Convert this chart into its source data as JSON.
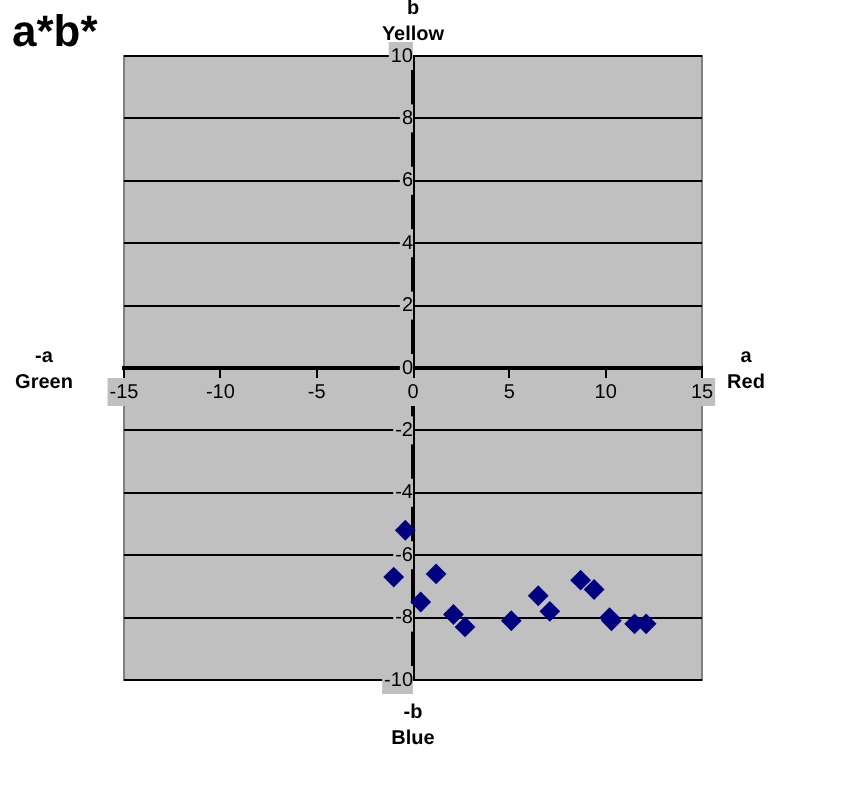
{
  "chart_data": {
    "type": "scatter",
    "title": "a*b*",
    "annotations": [
      "b\nYellow",
      "-b\nBlue",
      "-a\nGreen",
      "a\nRed"
    ],
    "x": [
      -0.4,
      -1.0,
      0.4,
      1.2,
      2.1,
      2.7,
      5.1,
      6.5,
      7.1,
      8.7,
      9.4,
      10.2,
      10.3,
      11.5,
      12.1
    ],
    "series": [
      {
        "color": "#000080",
        "values": [
          -5.2,
          -6.7,
          -7.5,
          -6.6,
          -7.9,
          -8.3,
          -8.1,
          -7.3,
          -7.8,
          -6.8,
          -7.1,
          -8.0,
          -8.1,
          -8.2,
          -8.2
        ]
      }
    ],
    "xlim": [
      -15,
      15
    ],
    "xticks": [
      -15,
      -10,
      -5,
      0,
      5,
      10,
      15
    ],
    "ylim": [
      -10,
      10
    ],
    "yticks": [
      -10,
      -8,
      -6,
      -4,
      -2,
      0,
      2,
      4,
      6,
      8,
      10
    ],
    "grid": "y",
    "marker": "diamond",
    "legend": false
  }
}
